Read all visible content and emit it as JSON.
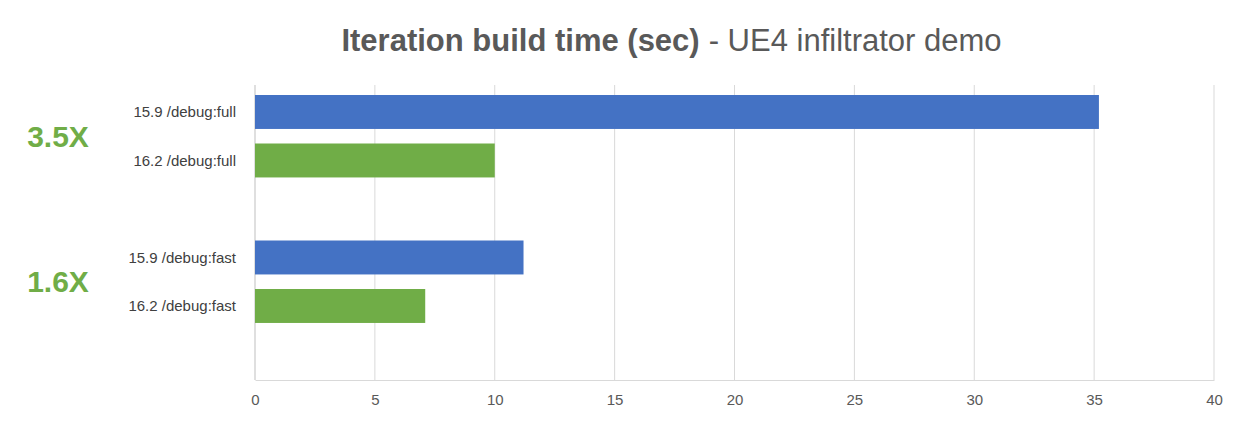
{
  "chart_data": {
    "type": "bar",
    "orientation": "horizontal",
    "title": "Iteration build time (sec)",
    "subtitle": "- UE4 infiltrator demo",
    "categories": [
      "15.9 /debug:full",
      "16.2 /debug:full",
      "15.9 /debug:fast",
      "16.2 /debug:fast"
    ],
    "values": [
      35.2,
      10,
      11.2,
      7.1
    ],
    "colors": [
      "#4472c4",
      "#70ad47",
      "#4472c4",
      "#70ad47"
    ],
    "annotations": [
      "3.5X",
      "1.6X"
    ],
    "xlim": [
      0,
      40
    ],
    "xticks": [
      0,
      5,
      10,
      15,
      20,
      25,
      30,
      35,
      40
    ],
    "grid": true
  }
}
